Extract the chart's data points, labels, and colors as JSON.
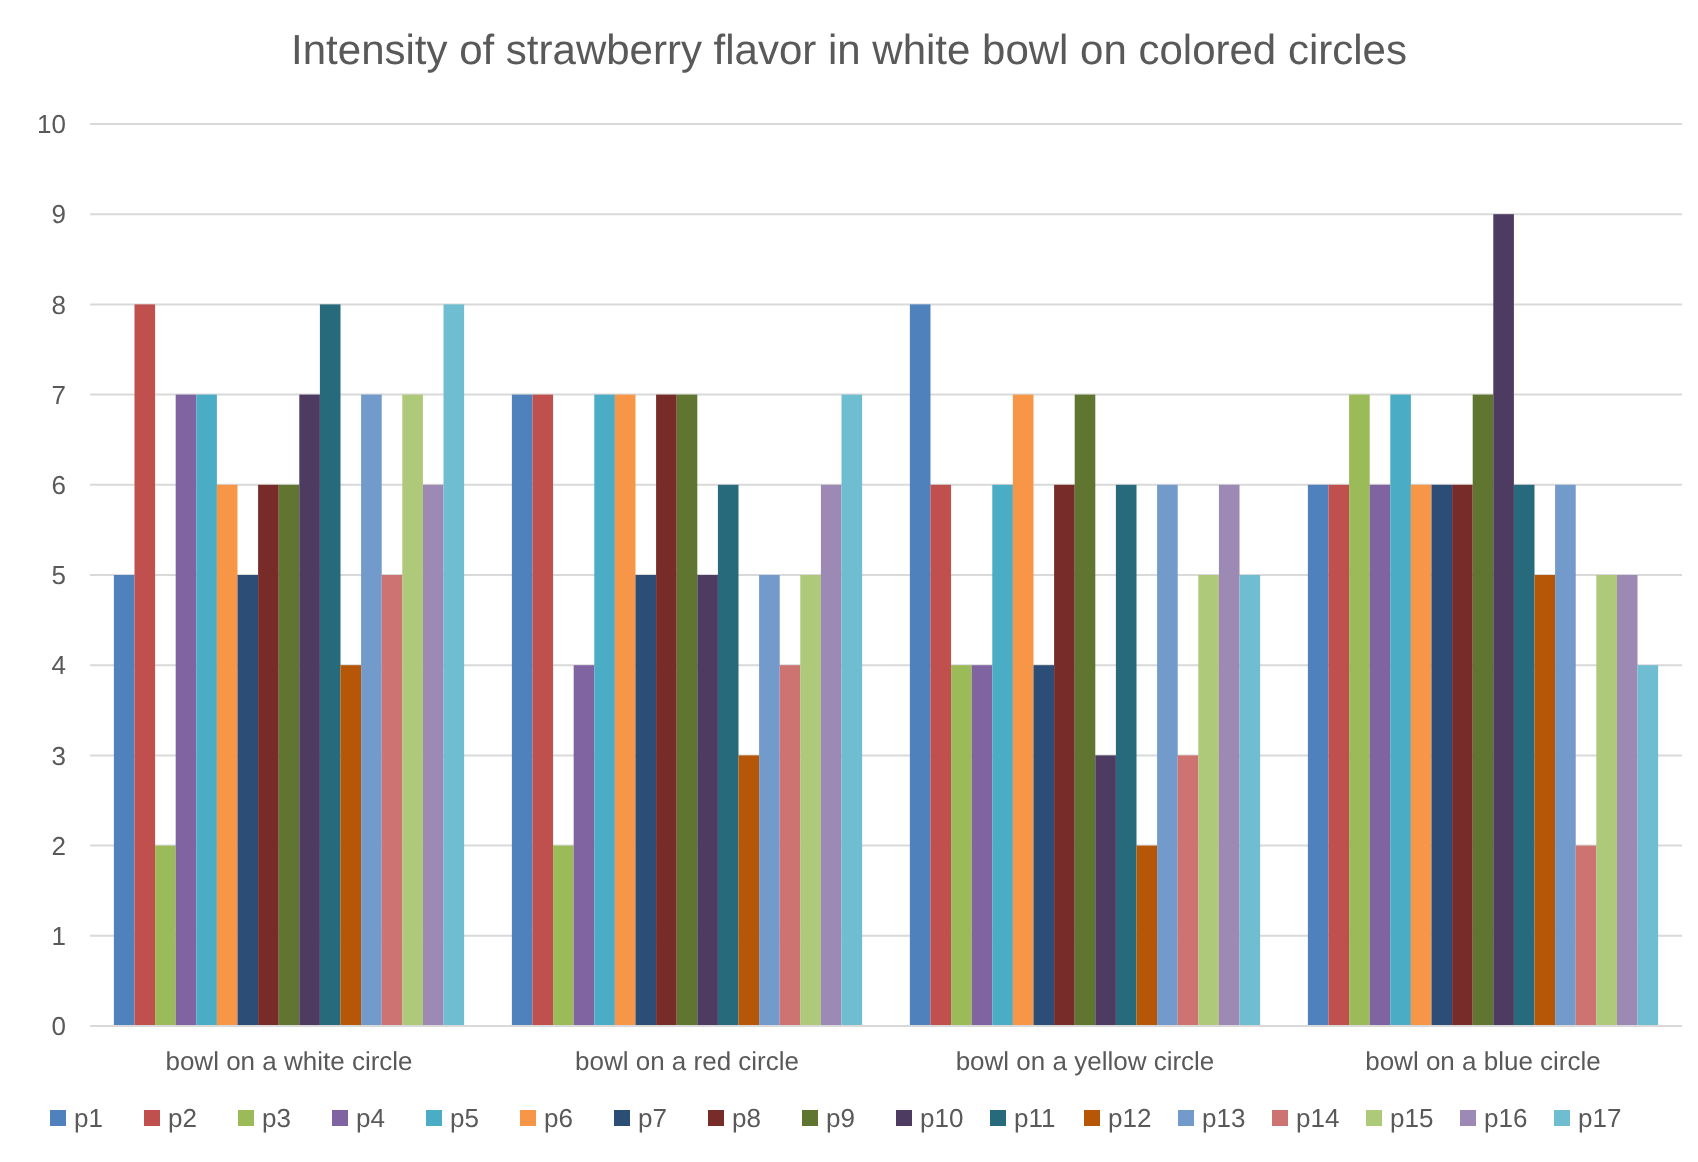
{
  "chart_data": {
    "type": "bar",
    "title": "Intensity of strawberry flavor in white bowl on colored circles",
    "categories": [
      "bowl on a white circle",
      "bowl on a red circle",
      "bowl on a yellow circle",
      "bowl on a blue circle"
    ],
    "series": [
      {
        "name": "p1",
        "color": "#4f81bd",
        "values": [
          5,
          7,
          8,
          6
        ]
      },
      {
        "name": "p2",
        "color": "#c0504d",
        "values": [
          8,
          7,
          6,
          6
        ]
      },
      {
        "name": "p3",
        "color": "#9bbb59",
        "values": [
          2,
          2,
          4,
          7
        ]
      },
      {
        "name": "p4",
        "color": "#8064a2",
        "values": [
          7,
          4,
          4,
          6
        ]
      },
      {
        "name": "p5",
        "color": "#4bacc6",
        "values": [
          7,
          7,
          6,
          7
        ]
      },
      {
        "name": "p6",
        "color": "#f79646",
        "values": [
          6,
          7,
          7,
          6
        ]
      },
      {
        "name": "p7",
        "color": "#2c4d75",
        "values": [
          5,
          5,
          4,
          6
        ]
      },
      {
        "name": "p8",
        "color": "#772c2a",
        "values": [
          6,
          7,
          6,
          6
        ]
      },
      {
        "name": "p9",
        "color": "#5f7530",
        "values": [
          6,
          7,
          7,
          7
        ]
      },
      {
        "name": "p10",
        "color": "#4d3b62",
        "values": [
          7,
          5,
          3,
          9
        ]
      },
      {
        "name": "p11",
        "color": "#276a7c",
        "values": [
          8,
          6,
          6,
          6
        ]
      },
      {
        "name": "p12",
        "color": "#b65708",
        "values": [
          4,
          3,
          2,
          5
        ]
      },
      {
        "name": "p13",
        "color": "#729aca",
        "values": [
          7,
          5,
          6,
          6
        ]
      },
      {
        "name": "p14",
        "color": "#cd7371",
        "values": [
          5,
          4,
          3,
          2
        ]
      },
      {
        "name": "p15",
        "color": "#afc97a",
        "values": [
          7,
          5,
          5,
          5
        ]
      },
      {
        "name": "p16",
        "color": "#9c8ab5",
        "values": [
          6,
          6,
          6,
          5
        ]
      },
      {
        "name": "p17",
        "color": "#6fbdd1",
        "values": [
          8,
          7,
          5,
          4
        ]
      }
    ],
    "ylim": [
      0,
      10
    ],
    "yticks": [
      0,
      1,
      2,
      3,
      4,
      5,
      6,
      7,
      8,
      9,
      10
    ],
    "grid": "y",
    "legend": "bottom"
  }
}
